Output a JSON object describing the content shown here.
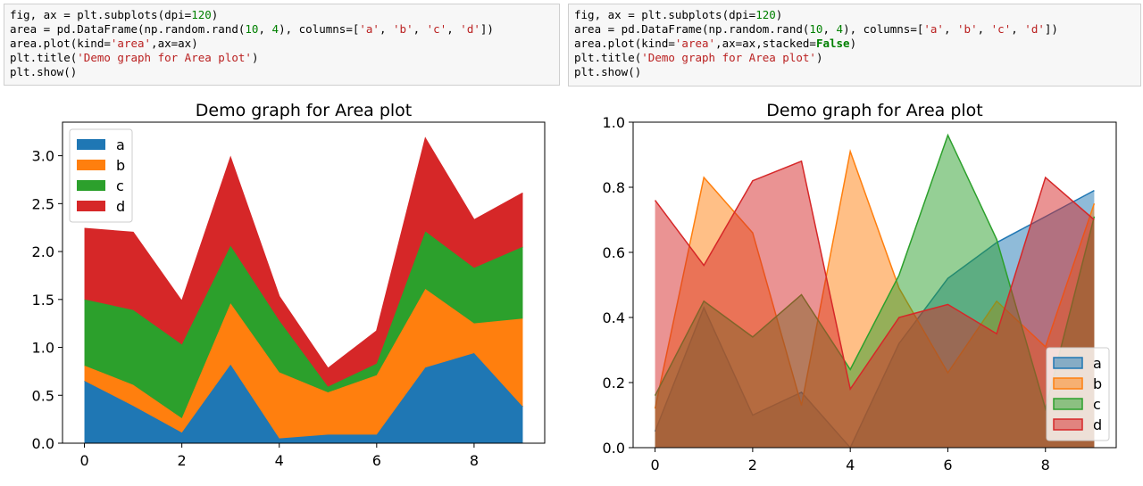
{
  "code_cells": [
    {
      "lines": [
        [
          {
            "t": "fig, ax = plt.subplots(dpi="
          },
          {
            "t": "120",
            "c": "num"
          },
          {
            "t": ")"
          }
        ],
        [
          {
            "t": "area = pd.DataFrame(np.random.rand("
          },
          {
            "t": "10",
            "c": "num"
          },
          {
            "t": ", "
          },
          {
            "t": "4",
            "c": "num"
          },
          {
            "t": "), columns=["
          },
          {
            "t": "'a'",
            "c": "str"
          },
          {
            "t": ", "
          },
          {
            "t": "'b'",
            "c": "str"
          },
          {
            "t": ", "
          },
          {
            "t": "'c'",
            "c": "str"
          },
          {
            "t": ", "
          },
          {
            "t": "'d'",
            "c": "str"
          },
          {
            "t": "])"
          }
        ],
        [
          {
            "t": "area.plot(kind="
          },
          {
            "t": "'area'",
            "c": "str"
          },
          {
            "t": ",ax=ax)"
          }
        ],
        [
          {
            "t": "plt.title("
          },
          {
            "t": "'Demo graph for Area plot'",
            "c": "str"
          },
          {
            "t": ")"
          }
        ],
        [
          {
            "t": "plt.show()"
          }
        ]
      ]
    },
    {
      "lines": [
        [
          {
            "t": "fig, ax = plt.subplots(dpi="
          },
          {
            "t": "120",
            "c": "num"
          },
          {
            "t": ")"
          }
        ],
        [
          {
            "t": "area = pd.DataFrame(np.random.rand("
          },
          {
            "t": "10",
            "c": "num"
          },
          {
            "t": ", "
          },
          {
            "t": "4",
            "c": "num"
          },
          {
            "t": "), columns=["
          },
          {
            "t": "'a'",
            "c": "str"
          },
          {
            "t": ", "
          },
          {
            "t": "'b'",
            "c": "str"
          },
          {
            "t": ", "
          },
          {
            "t": "'c'",
            "c": "str"
          },
          {
            "t": ", "
          },
          {
            "t": "'d'",
            "c": "str"
          },
          {
            "t": "])"
          }
        ],
        [
          {
            "t": "area.plot(kind="
          },
          {
            "t": "'area'",
            "c": "str"
          },
          {
            "t": ",ax=ax,stacked="
          },
          {
            "t": "False",
            "c": "kw"
          },
          {
            "t": ")"
          }
        ],
        [
          {
            "t": "plt.title("
          },
          {
            "t": "'Demo graph for Area plot'",
            "c": "str"
          },
          {
            "t": ")"
          }
        ],
        [
          {
            "t": "plt.show()"
          }
        ]
      ]
    }
  ],
  "chart_data": [
    {
      "type": "area",
      "stacked": true,
      "title": "Demo graph for Area plot",
      "xlabel": "",
      "ylabel": "",
      "x": [
        0,
        1,
        2,
        3,
        4,
        5,
        6,
        7,
        8,
        9
      ],
      "xlim": [
        -0.45,
        9.45
      ],
      "ylim": [
        0,
        3.35
      ],
      "xticks": [
        0,
        2,
        4,
        6,
        8
      ],
      "xtick_labels": [
        "0",
        "2",
        "4",
        "6",
        "8"
      ],
      "yticks": [
        0,
        0.5,
        1.0,
        1.5,
        2.0,
        2.5,
        3.0
      ],
      "ytick_labels": [
        "0.0",
        "0.5",
        "1.0",
        "1.5",
        "2.0",
        "2.5",
        "3.0"
      ],
      "legend": "upper-left",
      "grid": false,
      "series": [
        {
          "name": "a",
          "color": "#1f77b4",
          "values": [
            0.65,
            0.39,
            0.11,
            0.82,
            0.05,
            0.09,
            0.09,
            0.79,
            0.94,
            0.38
          ]
        },
        {
          "name": "b",
          "color": "#ff7f0e",
          "values": [
            0.16,
            0.22,
            0.15,
            0.64,
            0.69,
            0.44,
            0.62,
            0.82,
            0.31,
            0.92
          ]
        },
        {
          "name": "c",
          "color": "#2ca02c",
          "values": [
            0.69,
            0.78,
            0.77,
            0.6,
            0.54,
            0.06,
            0.12,
            0.6,
            0.58,
            0.75
          ]
        },
        {
          "name": "d",
          "color": "#d62728",
          "values": [
            0.74,
            0.81,
            0.45,
            0.92,
            0.25,
            0.19,
            0.34,
            0.97,
            0.5,
            0.56
          ]
        }
      ]
    },
    {
      "type": "area",
      "stacked": false,
      "title": "Demo graph for Area plot",
      "xlabel": "",
      "ylabel": "",
      "x": [
        0,
        1,
        2,
        3,
        4,
        5,
        6,
        7,
        8,
        9
      ],
      "xlim": [
        -0.45,
        9.45
      ],
      "ylim": [
        0,
        1.0
      ],
      "xticks": [
        0,
        2,
        4,
        6,
        8
      ],
      "xtick_labels": [
        "0",
        "2",
        "4",
        "6",
        "8"
      ],
      "yticks": [
        0,
        0.2,
        0.4,
        0.6,
        0.8,
        1.0
      ],
      "ytick_labels": [
        "0.0",
        "0.2",
        "0.4",
        "0.6",
        "0.8",
        "1.0"
      ],
      "legend": "lower-right",
      "grid": false,
      "alpha": 0.5,
      "series": [
        {
          "name": "a",
          "color": "#1f77b4",
          "values": [
            0.05,
            0.43,
            0.1,
            0.17,
            0.0,
            0.32,
            0.52,
            0.63,
            0.71,
            0.79
          ]
        },
        {
          "name": "b",
          "color": "#ff7f0e",
          "values": [
            0.12,
            0.83,
            0.66,
            0.13,
            0.91,
            0.49,
            0.23,
            0.45,
            0.31,
            0.75
          ]
        },
        {
          "name": "c",
          "color": "#2ca02c",
          "values": [
            0.16,
            0.45,
            0.34,
            0.47,
            0.24,
            0.53,
            0.96,
            0.64,
            0.12,
            0.71
          ]
        },
        {
          "name": "d",
          "color": "#d62728",
          "values": [
            0.76,
            0.56,
            0.82,
            0.88,
            0.18,
            0.4,
            0.44,
            0.35,
            0.83,
            0.7
          ]
        }
      ]
    }
  ]
}
